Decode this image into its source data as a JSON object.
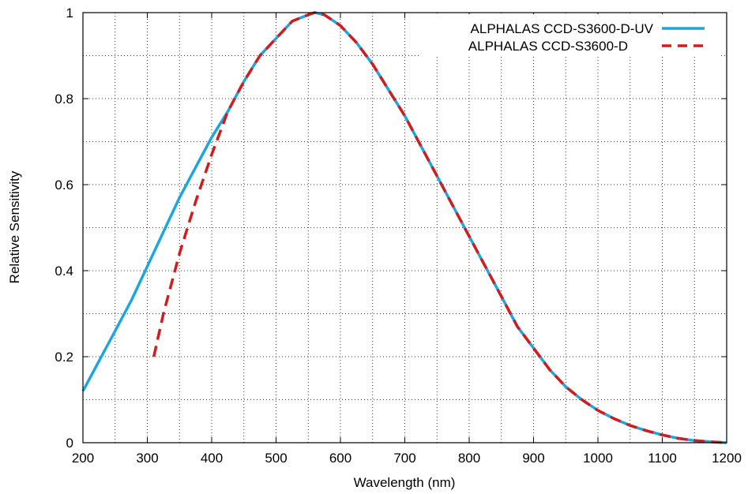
{
  "chart_data": {
    "type": "line",
    "xlabel": "Wavelength (nm)",
    "ylabel": "Relative Sensitivity",
    "xlim": [
      200,
      1200
    ],
    "ylim": [
      0,
      1
    ],
    "x_ticks": [
      200,
      300,
      400,
      500,
      600,
      700,
      800,
      900,
      1000,
      1100,
      1200
    ],
    "x_tick_labels": [
      "200",
      "300",
      "400",
      "500",
      "600",
      "700",
      "800",
      "900",
      "1000",
      "1100",
      "1200"
    ],
    "y_ticks": [
      0,
      0.2,
      0.4,
      0.6,
      0.8,
      1
    ],
    "y_tick_labels": [
      "0",
      "0.2",
      "0.4",
      "0.6",
      "0.8",
      "1"
    ],
    "grid": true,
    "grid_x_step": 50,
    "grid_y_step": 0.1,
    "legend_position": "top-right",
    "series": [
      {
        "name": "ALPHALAS CCD-S3600-D-UV",
        "color": "#1ea5e0",
        "style": "solid",
        "x": [
          200,
          225,
          250,
          275,
          300,
          325,
          350,
          375,
          400,
          425,
          450,
          475,
          500,
          525,
          550,
          560,
          575,
          600,
          625,
          650,
          675,
          700,
          725,
          750,
          775,
          800,
          825,
          850,
          875,
          900,
          925,
          950,
          975,
          1000,
          1025,
          1050,
          1075,
          1100,
          1125,
          1150,
          1175,
          1200
        ],
        "y": [
          0.12,
          0.19,
          0.26,
          0.33,
          0.41,
          0.49,
          0.57,
          0.64,
          0.71,
          0.77,
          0.84,
          0.9,
          0.94,
          0.98,
          0.995,
          1.0,
          0.995,
          0.97,
          0.93,
          0.88,
          0.82,
          0.76,
          0.69,
          0.62,
          0.55,
          0.48,
          0.41,
          0.34,
          0.27,
          0.22,
          0.17,
          0.13,
          0.1,
          0.075,
          0.056,
          0.04,
          0.028,
          0.018,
          0.01,
          0.005,
          0.002,
          0.0
        ]
      },
      {
        "name": "ALPHALAS CCD-S3600-D",
        "color": "#d01c1c",
        "style": "dashed",
        "x": [
          310,
          325,
          350,
          375,
          400,
          425,
          450,
          475,
          500,
          525,
          550,
          560,
          575,
          600,
          625,
          650,
          675,
          700,
          725,
          750,
          775,
          800,
          825,
          850,
          875,
          900,
          925,
          950,
          975,
          1000,
          1025,
          1050,
          1075,
          1100,
          1125,
          1150,
          1175,
          1200
        ],
        "y": [
          0.2,
          0.3,
          0.44,
          0.56,
          0.67,
          0.77,
          0.84,
          0.9,
          0.94,
          0.98,
          0.995,
          1.0,
          0.995,
          0.97,
          0.93,
          0.88,
          0.82,
          0.76,
          0.69,
          0.62,
          0.55,
          0.48,
          0.41,
          0.34,
          0.27,
          0.22,
          0.17,
          0.13,
          0.1,
          0.075,
          0.056,
          0.04,
          0.028,
          0.018,
          0.01,
          0.005,
          0.002,
          0.0
        ]
      }
    ]
  }
}
